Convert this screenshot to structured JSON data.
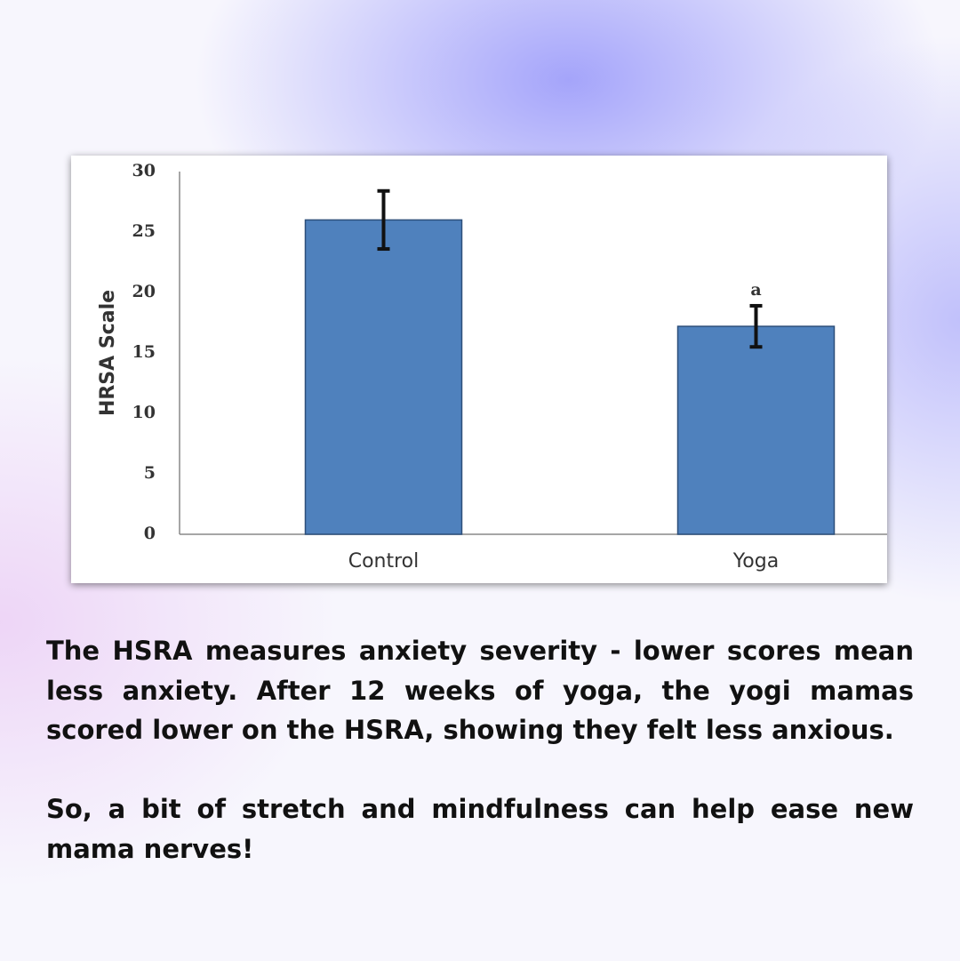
{
  "chart_data": {
    "type": "bar",
    "y_label": "HRSA Scale",
    "categories": [
      "Control",
      "Yoga"
    ],
    "values": [
      26,
      17.2
    ],
    "errors": [
      2.4,
      1.7
    ],
    "value_annotations": [
      null,
      "a"
    ],
    "color": "#4f81bd",
    "ylim": [
      0,
      30
    ],
    "yticks": [
      0,
      5,
      10,
      15,
      20,
      25,
      30
    ],
    "grid": false
  },
  "text": {
    "paragraphs": [
      "The HSRA measures anxiety severity - lower scores mean less anxiety. After 12 weeks of yoga, the yogi mamas scored lower on the HSRA, showing they felt less anxious.",
      "So, a bit of stretch and mindfulness can help ease new mama nerves!"
    ]
  }
}
